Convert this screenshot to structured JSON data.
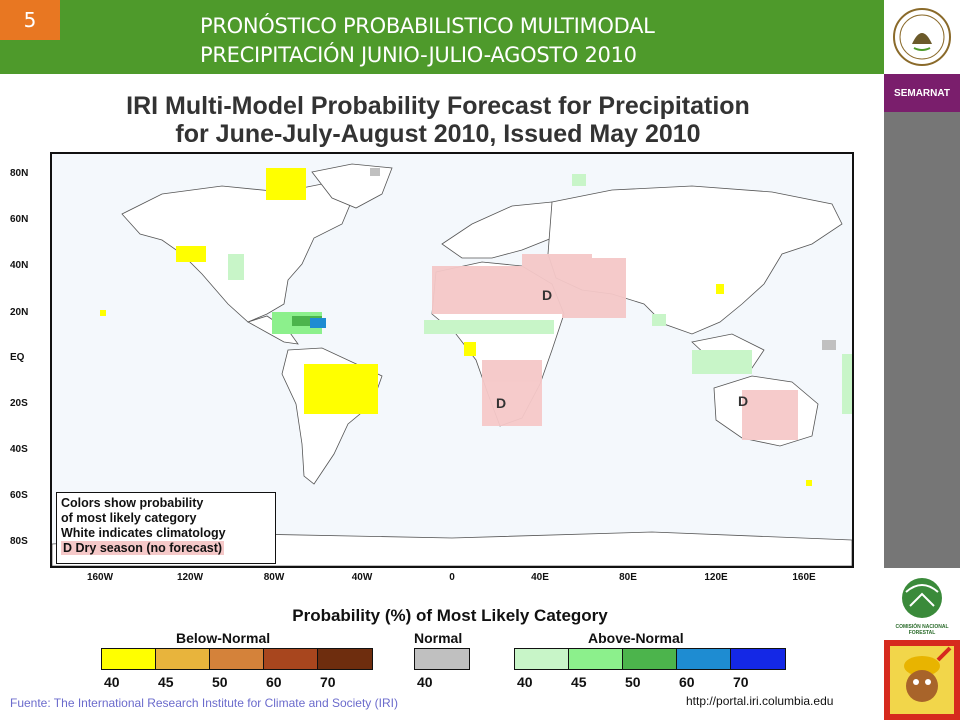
{
  "header": {
    "slide_number": "5",
    "title_line1": "PRONÓSTICO PROBABILISTICO MULTIMODAL",
    "title_line2": "PRECIPITACIÓN JUNIO-JULIO-AGOSTO 2010"
  },
  "sidebar": {
    "semarnat_label": "SEMARNAT",
    "conafor_label": "COMISIÓN NACIONAL FORESTAL"
  },
  "map": {
    "title_line1": "IRI Multi-Model Probability Forecast for Precipitation",
    "title_line2": "for June-July-August 2010, Issued May 2010",
    "lat_labels": [
      "80N",
      "60N",
      "40N",
      "20N",
      "EQ",
      "20S",
      "40S",
      "60S",
      "80S"
    ],
    "lon_labels": [
      "160W",
      "120W",
      "80W",
      "40W",
      "0",
      "40E",
      "80E",
      "120E",
      "160E"
    ],
    "legend_box": {
      "line1": "Colors show probability",
      "line2": "of most likely category",
      "line3": "White indicates climatology",
      "line4": "D Dry season (no forecast)"
    },
    "dry_marker": "D"
  },
  "legend": {
    "title": "Probability (%) of Most Likely Category",
    "below_normal": {
      "label": "Below-Normal",
      "colors": [
        "#ffff00",
        "#e8b43c",
        "#d4823a",
        "#a8461e",
        "#6e2d0e"
      ],
      "ticks": [
        "40",
        "45",
        "50",
        "60",
        "70"
      ]
    },
    "normal": {
      "label": "Normal",
      "colors": [
        "#c0c0c0"
      ],
      "ticks": [
        "40"
      ]
    },
    "above_normal": {
      "label": "Above-Normal",
      "colors": [
        "#c8f5c8",
        "#8cf08c",
        "#4cb44c",
        "#1e8cd2",
        "#1428e6"
      ],
      "ticks": [
        "40",
        "45",
        "50",
        "60",
        "70"
      ]
    },
    "dry_color": "#f5c8c8"
  },
  "footer": {
    "source": "Fuente: The International Research Institute for Climate and Society (IRI)",
    "url": "http://portal.iri.columbia.edu"
  }
}
